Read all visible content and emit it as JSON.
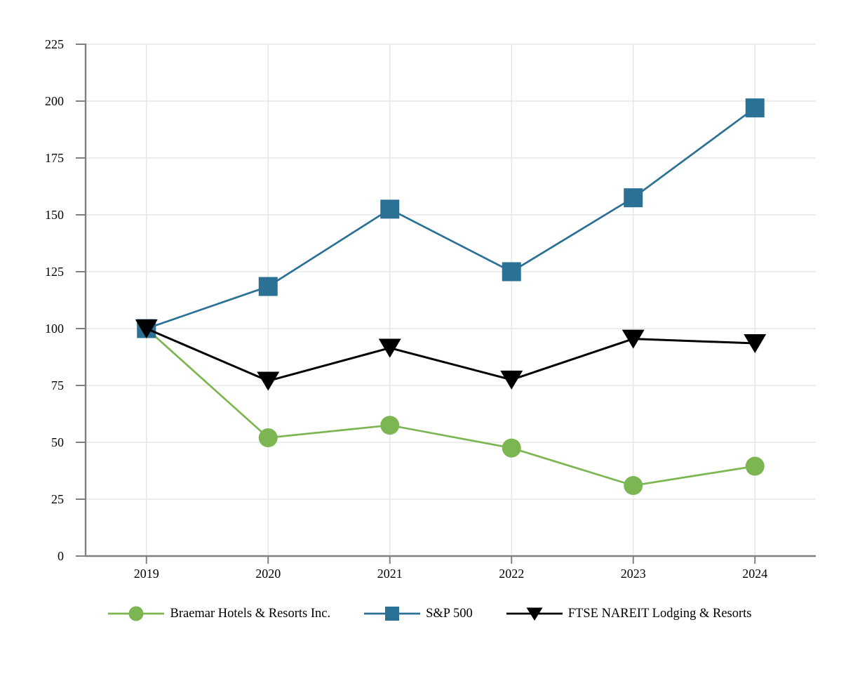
{
  "chart_data": {
    "type": "line",
    "title": "",
    "categories": [
      "2019",
      "2020",
      "2021",
      "2022",
      "2023",
      "2024"
    ],
    "y_tick_labels": [
      "0",
      "25",
      "50",
      "75",
      "100",
      "125",
      "150",
      "175",
      "200",
      "225"
    ],
    "ylim": [
      0,
      225
    ],
    "ytick_step": 25,
    "grid": true,
    "legend_position": "bottom",
    "series": [
      {
        "name": "Braemar Hotels & Resorts Inc.",
        "marker": "circle",
        "color": "#7bb652",
        "values": [
          100,
          52,
          57.5,
          47.5,
          31,
          39.5
        ]
      },
      {
        "name": "S&P 500",
        "marker": "square",
        "color": "#2b7095",
        "values": [
          100,
          118.5,
          152.5,
          125,
          157.5,
          197
        ]
      },
      {
        "name": "FTSE NAREIT Lodging & Resorts",
        "marker": "triangle-down",
        "color": "#000000",
        "values": [
          100,
          77,
          91.5,
          77.5,
          95.5,
          93.5
        ]
      }
    ],
    "colors": {
      "background": "#ffffff",
      "gridline": "#e7e7e7",
      "axis": "#808080",
      "text": "#000000"
    }
  }
}
